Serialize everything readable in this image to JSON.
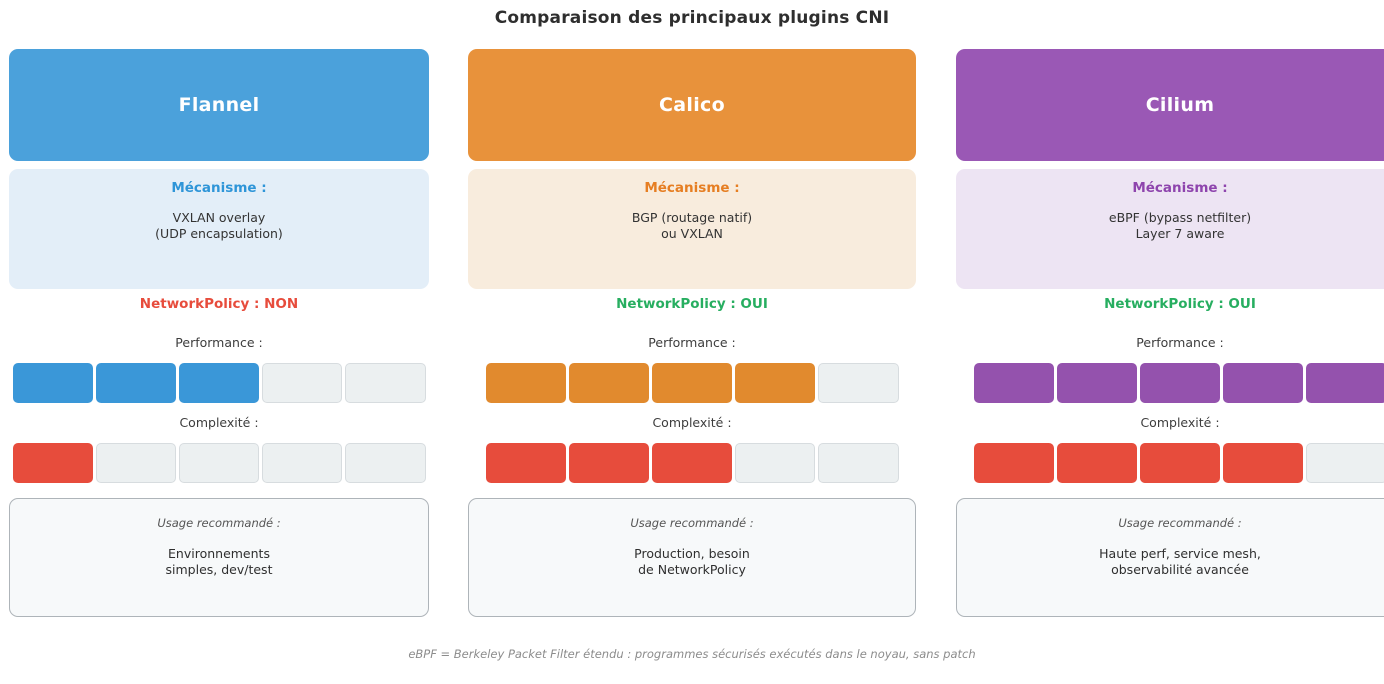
{
  "title": "Comparaison des principaux plugins CNI",
  "footer_note": "eBPF = Berkeley Packet Filter étendu : programmes sécurisés exécutés dans le noyau, sans patch",
  "labels": {
    "mechanism": "Mécanisme :",
    "performance": "Performance :",
    "complexity": "Complexité :",
    "usage": "Usage recommandé :"
  },
  "colors": {
    "complexity_fill": "#E74C3C",
    "empty_segment": "#ECF0F1",
    "empty_segment_border": "#D7DCDF",
    "network_policy_no": "#E74C3C",
    "network_policy_yes": "#27AE60"
  },
  "plugins": [
    {
      "name": "Flannel",
      "colors": {
        "header": "#4BA1DB",
        "light": "#E3EEF8",
        "accent": "#2E95D8",
        "bar": "#3A97D8",
        "network_policy": "#E74C3C"
      },
      "mechanism_lines": [
        "VXLAN overlay",
        "(UDP encapsulation)"
      ],
      "network_policy_label": "NetworkPolicy : NON",
      "ratings": {
        "performance": 3,
        "complexity": 1
      },
      "usage_lines": [
        "Environnements",
        "simples, dev/test"
      ]
    },
    {
      "name": "Calico",
      "colors": {
        "header": "#E8923B",
        "light": "#F8ECDD",
        "accent": "#E67E22",
        "bar": "#E18A2E",
        "network_policy": "#27AE60"
      },
      "mechanism_lines": [
        "BGP (routage natif)",
        "ou VXLAN"
      ],
      "network_policy_label": "NetworkPolicy : OUI",
      "ratings": {
        "performance": 4,
        "complexity": 3
      },
      "usage_lines": [
        "Production, besoin",
        "de NetworkPolicy"
      ]
    },
    {
      "name": "Cilium",
      "colors": {
        "header": "#9A58B5",
        "light": "#EDE4F3",
        "accent": "#8E44AD",
        "bar": "#9452AD",
        "network_policy": "#27AE60"
      },
      "mechanism_lines": [
        "eBPF (bypass netfilter)",
        "Layer 7 aware"
      ],
      "network_policy_label": "NetworkPolicy : OUI",
      "ratings": {
        "performance": 5,
        "complexity": 4
      },
      "usage_lines": [
        "Haute perf, service mesh,",
        "observabilité avancée"
      ]
    }
  ],
  "chart_data": {
    "type": "table",
    "title": "Comparaison des principaux plugins CNI",
    "columns": [
      "Flannel",
      "Calico",
      "Cilium"
    ],
    "rows": {
      "mecanisme": [
        "VXLAN overlay (UDP encapsulation)",
        "BGP (routage natif) ou VXLAN",
        "eBPF (bypass netfilter) Layer 7 aware"
      ],
      "network_policy": [
        "NON",
        "OUI",
        "OUI"
      ],
      "performance_sur_5": [
        3,
        4,
        5
      ],
      "complexite_sur_5": [
        1,
        3,
        4
      ],
      "usage_recommande": [
        "Environnements simples, dev/test",
        "Production, besoin de NetworkPolicy",
        "Haute perf, service mesh, observabilité avancée"
      ]
    },
    "rating_scale_max": 5,
    "note": "eBPF = Berkeley Packet Filter étendu : programmes sécurisés exécutés dans le noyau, sans patch"
  }
}
